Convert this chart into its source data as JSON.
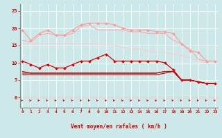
{
  "xlabel": "Vent moyen/en rafales ( km/h )",
  "bg_color": "#cce8e8",
  "grid_color": "#ffffff",
  "x_ticks": [
    0,
    1,
    2,
    3,
    4,
    5,
    6,
    7,
    8,
    9,
    10,
    11,
    12,
    13,
    14,
    15,
    16,
    17,
    18,
    19,
    20,
    21,
    22,
    23
  ],
  "y_ticks": [
    0,
    5,
    10,
    15,
    20,
    25
  ],
  "ylim": [
    -3,
    27
  ],
  "xlim": [
    -0.3,
    23.3
  ],
  "lines": [
    {
      "comment": "top pink line with diamond markers - rafales max",
      "y": [
        19.5,
        16.5,
        18.5,
        19.5,
        18.0,
        18.0,
        19.5,
        21.0,
        21.5,
        21.5,
        21.5,
        21.0,
        20.0,
        19.5,
        19.5,
        19.5,
        19.0,
        19.0,
        18.5,
        15.5,
        13.5,
        13.0,
        10.5,
        10.5
      ],
      "color": "#ff9999",
      "lw": 0.8,
      "marker": "D",
      "ms": 2.0,
      "zorder": 5
    },
    {
      "comment": "second pink line - rafales upper band",
      "y": [
        16.5,
        16.0,
        18.0,
        18.5,
        18.0,
        18.0,
        18.5,
        20.5,
        21.0,
        19.5,
        19.5,
        19.5,
        19.5,
        19.0,
        19.0,
        18.5,
        18.5,
        18.5,
        16.5,
        15.5,
        14.0,
        11.0,
        10.5,
        10.5
      ],
      "color": "#ffaaaa",
      "lw": 0.8,
      "marker": null,
      "ms": 0,
      "zorder": 3
    },
    {
      "comment": "third pink line - vent moyen upper",
      "y": [
        15.5,
        15.5,
        15.5,
        15.5,
        15.5,
        15.5,
        15.5,
        15.5,
        15.5,
        15.5,
        15.0,
        15.0,
        14.5,
        14.0,
        14.0,
        13.5,
        13.0,
        13.0,
        12.5,
        12.0,
        11.5,
        10.5,
        10.5,
        10.5
      ],
      "color": "#ffcccc",
      "lw": 0.8,
      "marker": null,
      "ms": 0,
      "zorder": 2
    },
    {
      "comment": "red line with markers - vent en rafales instantane",
      "y": [
        10.5,
        9.5,
        8.5,
        9.5,
        8.5,
        8.5,
        9.5,
        10.5,
        10.5,
        11.5,
        12.5,
        10.5,
        10.5,
        10.5,
        10.5,
        10.5,
        10.5,
        10.0,
        8.0,
        5.0,
        5.0,
        4.5,
        4.0,
        4.0
      ],
      "color": "#dd0000",
      "lw": 0.9,
      "marker": "D",
      "ms": 2.0,
      "zorder": 6
    },
    {
      "comment": "dark red flat line upper - vent moyen",
      "y": [
        7.5,
        7.0,
        7.0,
        7.0,
        7.0,
        7.0,
        7.0,
        7.0,
        7.0,
        7.0,
        7.0,
        7.0,
        7.0,
        7.0,
        7.0,
        7.0,
        7.0,
        7.5,
        7.5,
        5.0,
        5.0,
        4.5,
        4.0,
        4.0
      ],
      "color": "#cc0000",
      "lw": 0.8,
      "marker": null,
      "ms": 0,
      "zorder": 4
    },
    {
      "comment": "dark red flat line mid",
      "y": [
        7.0,
        7.0,
        7.0,
        7.0,
        7.0,
        7.0,
        7.0,
        7.0,
        7.0,
        7.0,
        7.0,
        7.0,
        7.0,
        7.0,
        7.0,
        7.0,
        7.0,
        7.5,
        7.5,
        5.0,
        5.0,
        4.5,
        4.0,
        4.0
      ],
      "color": "#bb0000",
      "lw": 0.8,
      "marker": null,
      "ms": 0,
      "zorder": 3
    },
    {
      "comment": "dark red flat line lower",
      "y": [
        6.5,
        6.5,
        6.5,
        6.5,
        6.5,
        6.5,
        6.5,
        6.5,
        6.5,
        6.5,
        6.5,
        6.5,
        6.5,
        6.5,
        6.5,
        6.5,
        6.5,
        7.0,
        7.5,
        5.0,
        5.0,
        4.5,
        4.0,
        4.0
      ],
      "color": "#990000",
      "lw": 0.8,
      "marker": null,
      "ms": 0,
      "zorder": 3
    }
  ],
  "arrow_color": "#cc0000",
  "tick_color": "#cc0000",
  "axis_color": "#888888",
  "spine_color": "#888888"
}
